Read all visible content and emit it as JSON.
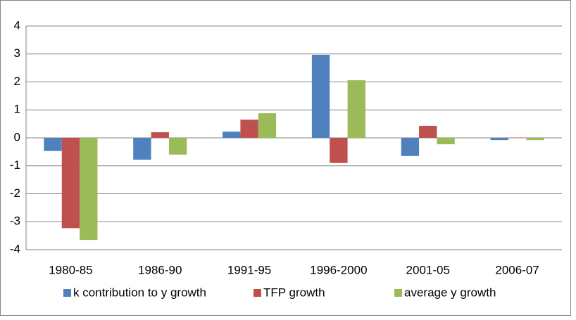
{
  "chart_data": {
    "type": "bar",
    "categories": [
      "1980-85",
      "1986-90",
      "1991-95",
      "1996-2000",
      "2001-05",
      "2006-07"
    ],
    "series": [
      {
        "name": "k contribution to y growth",
        "color": "#4f81bd",
        "values": [
          -0.47,
          -0.78,
          0.22,
          2.97,
          -0.65,
          -0.08
        ]
      },
      {
        "name": "TFP growth",
        "color": "#c0504d",
        "values": [
          -3.23,
          0.2,
          0.65,
          -0.9,
          0.43,
          0.01
        ]
      },
      {
        "name": "average y growth",
        "color": "#9bbb59",
        "values": [
          -3.65,
          -0.6,
          0.88,
          2.06,
          -0.23,
          -0.08
        ]
      }
    ],
    "ylim": [
      -4,
      4
    ],
    "yticks": [
      -4,
      -3,
      -2,
      -1,
      0,
      1,
      2,
      3,
      4
    ],
    "grid": true,
    "legend": "bottom"
  }
}
